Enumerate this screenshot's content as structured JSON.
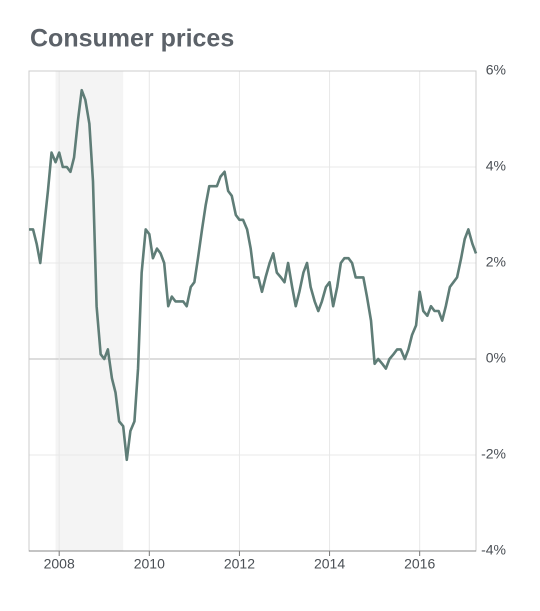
{
  "chart_data": {
    "type": "line",
    "title": "Consumer prices",
    "x": [
      2007.33,
      2007.42,
      2007.5,
      2007.58,
      2007.67,
      2007.75,
      2007.83,
      2007.92,
      2008,
      2008.08,
      2008.17,
      2008.25,
      2008.33,
      2008.42,
      2008.5,
      2008.58,
      2008.67,
      2008.75,
      2008.83,
      2008.92,
      2009,
      2009.08,
      2009.17,
      2009.25,
      2009.33,
      2009.42,
      2009.5,
      2009.58,
      2009.67,
      2009.75,
      2009.83,
      2009.92,
      2010,
      2010.08,
      2010.17,
      2010.25,
      2010.33,
      2010.42,
      2010.5,
      2010.58,
      2010.67,
      2010.75,
      2010.83,
      2010.92,
      2011,
      2011.08,
      2011.17,
      2011.25,
      2011.33,
      2011.42,
      2011.5,
      2011.58,
      2011.67,
      2011.75,
      2011.83,
      2011.92,
      2012,
      2012.08,
      2012.17,
      2012.25,
      2012.33,
      2012.42,
      2012.5,
      2012.58,
      2012.67,
      2012.75,
      2012.83,
      2012.92,
      2013,
      2013.08,
      2013.17,
      2013.25,
      2013.33,
      2013.42,
      2013.5,
      2013.58,
      2013.67,
      2013.75,
      2013.83,
      2013.92,
      2014,
      2014.08,
      2014.17,
      2014.25,
      2014.33,
      2014.42,
      2014.5,
      2014.58,
      2014.67,
      2014.75,
      2014.83,
      2014.92,
      2015,
      2015.08,
      2015.17,
      2015.25,
      2015.33,
      2015.42,
      2015.5,
      2015.58,
      2015.67,
      2015.75,
      2015.83,
      2015.92,
      2016,
      2016.08,
      2016.17,
      2016.25,
      2016.33,
      2016.42,
      2016.5,
      2016.58,
      2016.67,
      2016.75,
      2016.83,
      2016.92,
      2017,
      2017.08,
      2017.17,
      2017.25
    ],
    "series": [
      {
        "name": "Consumer prices",
        "color": "#5f7d77",
        "values": [
          2.7,
          2.7,
          2.4,
          2.0,
          2.8,
          3.5,
          4.3,
          4.1,
          4.3,
          4.0,
          4.0,
          3.9,
          4.2,
          5.0,
          5.6,
          5.4,
          4.9,
          3.7,
          1.1,
          0.1,
          0.0,
          0.2,
          -0.4,
          -0.7,
          -1.3,
          -1.4,
          -2.1,
          -1.5,
          -1.3,
          -0.2,
          1.8,
          2.7,
          2.6,
          2.1,
          2.3,
          2.2,
          2.0,
          1.1,
          1.3,
          1.2,
          1.2,
          1.2,
          1.1,
          1.5,
          1.6,
          2.1,
          2.7,
          3.2,
          3.6,
          3.6,
          3.6,
          3.8,
          3.9,
          3.5,
          3.4,
          3.0,
          2.9,
          2.9,
          2.7,
          2.3,
          1.7,
          1.7,
          1.4,
          1.7,
          2.0,
          2.2,
          1.8,
          1.7,
          1.6,
          2.0,
          1.5,
          1.1,
          1.4,
          1.8,
          2.0,
          1.5,
          1.2,
          1.0,
          1.2,
          1.5,
          1.6,
          1.1,
          1.5,
          2.0,
          2.1,
          2.1,
          2.0,
          1.7,
          1.7,
          1.7,
          1.3,
          0.8,
          -0.1,
          0.0,
          -0.1,
          -0.2,
          0.0,
          0.1,
          0.2,
          0.2,
          0.0,
          0.2,
          0.5,
          0.7,
          1.4,
          1.0,
          0.9,
          1.1,
          1.0,
          1.0,
          0.8,
          1.1,
          1.5,
          1.6,
          1.7,
          2.1,
          2.5,
          2.7,
          2.4,
          2.2
        ]
      }
    ],
    "shaded": [
      2007.92,
      2009.42
    ],
    "xlim": [
      2007.33,
      2017.25
    ],
    "xticks": [
      2008,
      2010,
      2012,
      2014,
      2016
    ],
    "ylim": [
      -4,
      6
    ],
    "yticks": [
      {
        "value": -4,
        "label": "-4%"
      },
      {
        "value": -2,
        "label": "-2%"
      },
      {
        "value": 0,
        "label": "0%"
      },
      {
        "value": 2,
        "label": "2%"
      },
      {
        "value": 4,
        "label": "4%"
      },
      {
        "value": 6,
        "label": "6%"
      }
    ],
    "grid": true
  }
}
